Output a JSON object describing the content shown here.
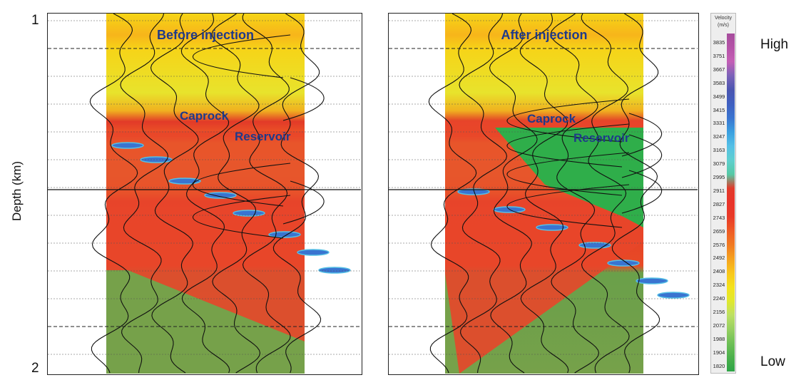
{
  "axis": {
    "label": "Depth (km)",
    "top_tick": "1",
    "bottom_tick": "2"
  },
  "panels": [
    {
      "title": "Before injection",
      "caprock": "Caprock",
      "reservoir": "Reservoir",
      "state": "before"
    },
    {
      "title": "After injection",
      "caprock": "Caprock",
      "reservoir": "Reservoir",
      "state": "after"
    }
  ],
  "colorbar": {
    "title": "Velocity",
    "unit": "(m/s)",
    "labels": [
      "3835",
      "3751",
      "3667",
      "3583",
      "3499",
      "3415",
      "3331",
      "3247",
      "3163",
      "3079",
      "2995",
      "2911",
      "2827",
      "2743",
      "2659",
      "2576",
      "2492",
      "2408",
      "2324",
      "2240",
      "2156",
      "2072",
      "1988",
      "1904",
      "1820"
    ],
    "colors": [
      "#a64d9c",
      "#b553a8",
      "#c45fb5",
      "#7a62b8",
      "#4a55b0",
      "#3f5fc0",
      "#3a74d0",
      "#3aa0e0",
      "#55c0e6",
      "#5fcfcf",
      "#55c9a5",
      "#e23a2a",
      "#e8332a",
      "#e83a28",
      "#ee5a26",
      "#f07a22",
      "#f5a21e",
      "#f8c61c",
      "#f4e21c",
      "#e0e82e",
      "#bde064",
      "#97cf62",
      "#6dbf56",
      "#4cb04c",
      "#2ea447"
    ],
    "high": "High",
    "low": "Low"
  },
  "label_colors": {
    "annotation": "#1f3a8a",
    "wiggle": "#111111"
  }
}
